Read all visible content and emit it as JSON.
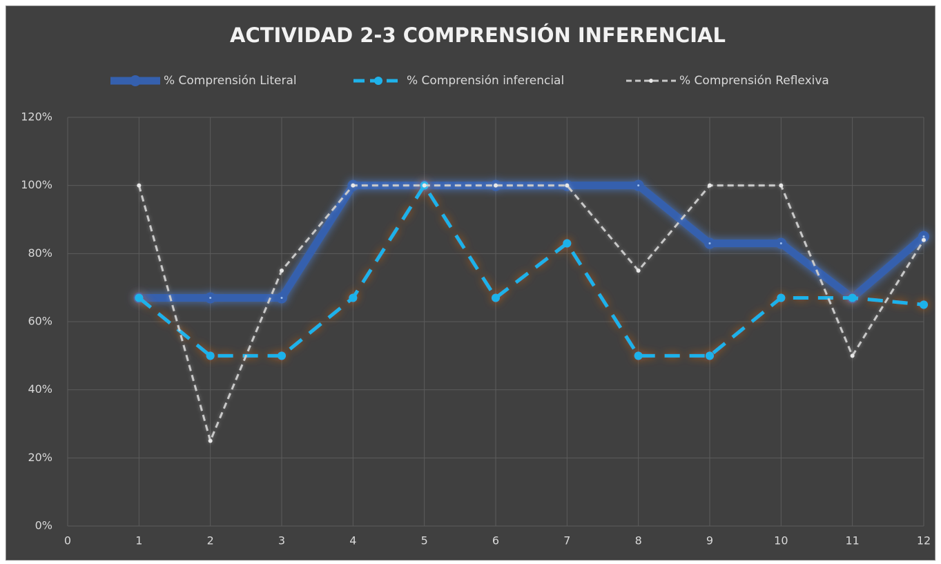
{
  "chart_data": {
    "type": "line",
    "title": "ACTIVIDAD 2-3 COMPRENSIÓN INFERENCIAL",
    "x": [
      1,
      2,
      3,
      4,
      5,
      6,
      7,
      8,
      9,
      10,
      11,
      12
    ],
    "series": [
      {
        "name": "% Comprensión Literal",
        "color": "#3560ae",
        "glow": "#4f86e0",
        "style": "solid",
        "values": [
          67,
          67,
          67,
          100,
          100,
          100,
          100,
          100,
          83,
          83,
          67,
          85
        ]
      },
      {
        "name": "% Comprensión inferencial",
        "color": "#1fb2ea",
        "glow": "#d9651c",
        "style": "dashed",
        "values": [
          67,
          50,
          50,
          67,
          100,
          67,
          83,
          50,
          50,
          67,
          67,
          65
        ]
      },
      {
        "name": "% Comprensión Reflexiva",
        "color": "#c9c9c9",
        "glow": "#ffffff",
        "style": "dotted-dash",
        "values": [
          100,
          25,
          75,
          100,
          100,
          100,
          100,
          75,
          100,
          100,
          50,
          84
        ]
      }
    ],
    "xlim": [
      0,
      12
    ],
    "xticks": [
      0,
      1,
      2,
      3,
      4,
      5,
      6,
      7,
      8,
      9,
      10,
      11,
      12
    ],
    "ylim": [
      0,
      120
    ],
    "yticks": [
      {
        "value": 0,
        "label": "0%"
      },
      {
        "value": 20,
        "label": "20%"
      },
      {
        "value": 40,
        "label": "40%"
      },
      {
        "value": 60,
        "label": "60%"
      },
      {
        "value": 80,
        "label": "80%"
      },
      {
        "value": 100,
        "label": "100%"
      },
      {
        "value": 120,
        "label": "120%"
      }
    ],
    "grid": true,
    "legend": "top"
  }
}
